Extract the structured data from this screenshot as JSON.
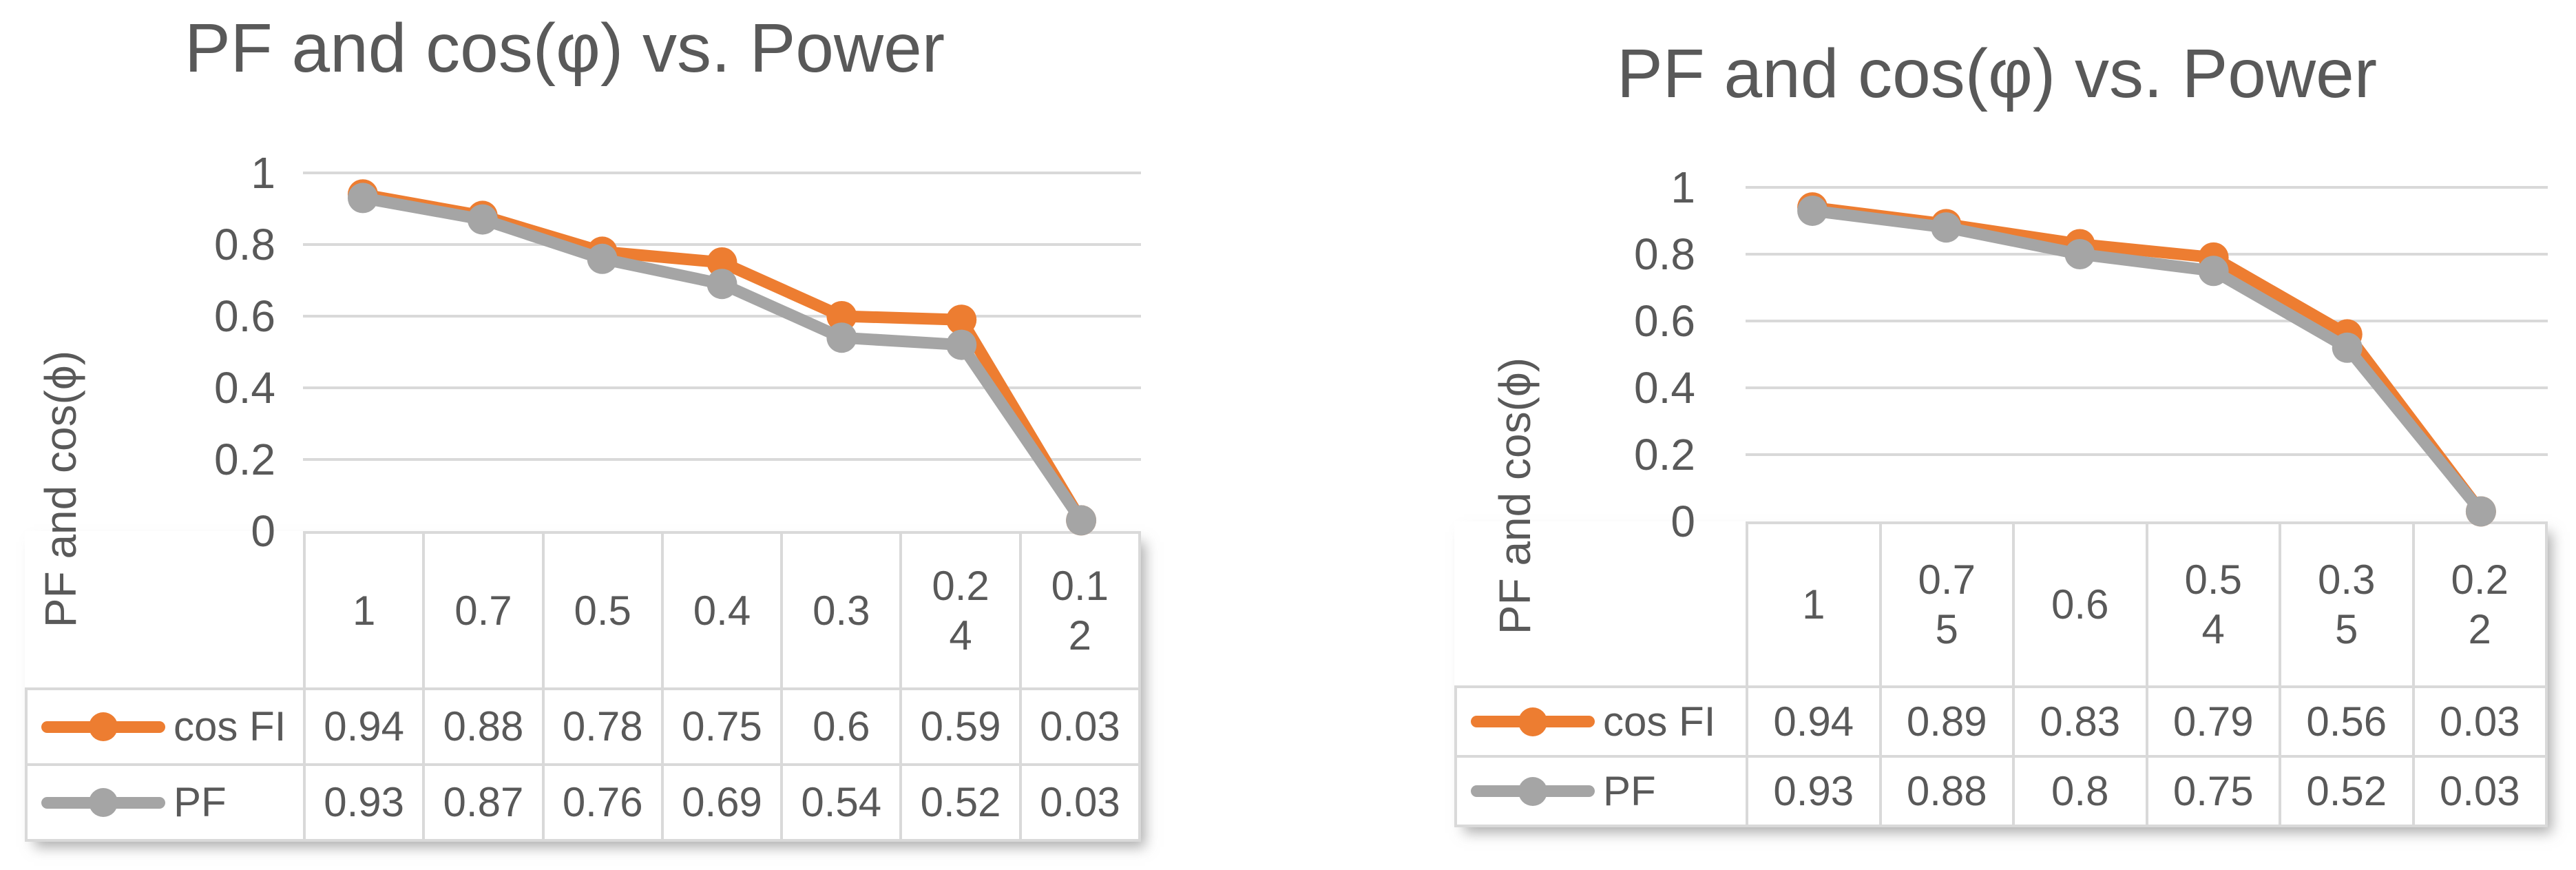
{
  "colors": {
    "background": "#FFFFFF",
    "text": "#595959",
    "gridline": "#D9D9D9",
    "table_border": "#D9D9D9",
    "series_cos_fi": "#ED7D31",
    "series_pf": "#A5A5A5"
  },
  "chart_data": [
    {
      "type": "line",
      "title": "PF and cos(φ) vs. Power",
      "ylabel": "PF and cos(ϕ)",
      "xlabel": "",
      "ylim": [
        0,
        1
      ],
      "grid": true,
      "legend_position": "table-left",
      "y_ticks": [
        "1",
        "0.8",
        "0.6",
        "0.4",
        "0.2",
        "0"
      ],
      "categories": [
        1,
        0.7,
        0.5,
        0.4,
        0.3,
        0.24,
        0.12
      ],
      "category_labels": [
        "1",
        "0.7",
        "0.5",
        "0.4",
        "0.3",
        "0.2\n4",
        "0.1\n2"
      ],
      "series": [
        {
          "name": "cos FI",
          "color": "#ED7D31",
          "values": [
            0.94,
            0.88,
            0.78,
            0.75,
            0.6,
            0.59,
            0.03
          ],
          "labels": [
            "0.94",
            "0.88",
            "0.78",
            "0.75",
            "0.6",
            "0.59",
            "0.03"
          ]
        },
        {
          "name": "PF",
          "color": "#A5A5A5",
          "values": [
            0.93,
            0.87,
            0.76,
            0.69,
            0.54,
            0.52,
            0.03
          ],
          "labels": [
            "0.93",
            "0.87",
            "0.76",
            "0.69",
            "0.54",
            "0.52",
            "0.03"
          ]
        }
      ]
    },
    {
      "type": "line",
      "title": "PF and cos(φ) vs. Power",
      "ylabel": "PF and cos(ϕ)",
      "xlabel": "",
      "ylim": [
        0,
        1
      ],
      "grid": true,
      "legend_position": "table-left",
      "y_ticks": [
        "1",
        "0.8",
        "0.6",
        "0.4",
        "0.2",
        "0"
      ],
      "categories": [
        1,
        0.75,
        0.6,
        0.54,
        0.35,
        0.22
      ],
      "category_labels": [
        "1",
        "0.7\n5",
        "0.6",
        "0.5\n4",
        "0.3\n5",
        "0.2\n2"
      ],
      "series": [
        {
          "name": "cos FI",
          "color": "#ED7D31",
          "values": [
            0.94,
            0.89,
            0.83,
            0.79,
            0.56,
            0.03
          ],
          "labels": [
            "0.94",
            "0.89",
            "0.83",
            "0.79",
            "0.56",
            "0.03"
          ]
        },
        {
          "name": "PF",
          "color": "#A5A5A5",
          "values": [
            0.93,
            0.88,
            0.8,
            0.75,
            0.52,
            0.03
          ],
          "labels": [
            "0.93",
            "0.88",
            "0.8",
            "0.75",
            "0.52",
            "0.03"
          ]
        }
      ]
    }
  ]
}
